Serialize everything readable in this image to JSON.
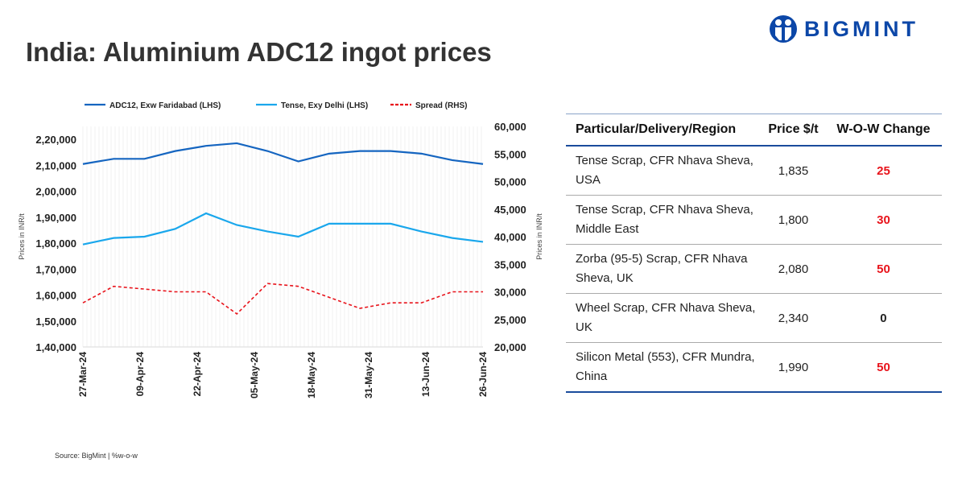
{
  "title": "India: Aluminium ADC12 ingot prices",
  "logo": {
    "text": "BIGMINT",
    "color": "#0c47a8"
  },
  "source": "Source: BigMint | %w-o-w",
  "chart_data": {
    "type": "line",
    "x": [
      "27-Mar-24",
      "03-Apr-24",
      "10-Apr-24",
      "17-Apr-24",
      "24-Apr-24",
      "01-May-24",
      "08-May-24",
      "15-May-24",
      "22-May-24",
      "29-May-24",
      "05-Jun-24",
      "12-Jun-24",
      "19-Jun-24",
      "26-Jun-24"
    ],
    "x_ticks": [
      "27-Mar-24",
      "09-Apr-24",
      "22-Apr-24",
      "05-May-24",
      "18-May-24",
      "31-May-24",
      "13-Jun-24",
      "26-Jun-24"
    ],
    "series": [
      {
        "name": "ADC12, Exw Faridabad (LHS)",
        "axis": "left",
        "color": "#1565c0",
        "dash": false,
        "values": [
          210500,
          212500,
          212500,
          215500,
          217500,
          218500,
          215500,
          211500,
          214500,
          215500,
          215500,
          214500,
          212000,
          210500
        ]
      },
      {
        "name": "Tense, Exy Delhi (LHS)",
        "axis": "left",
        "color": "#1aa7ec",
        "dash": false,
        "values": [
          179500,
          182000,
          182500,
          185500,
          191500,
          187000,
          184500,
          182500,
          187500,
          187500,
          187500,
          184500,
          182000,
          180500
        ]
      },
      {
        "name": "Spread (RHS)",
        "axis": "right",
        "color": "#e8131b",
        "dash": true,
        "values": [
          28000,
          31000,
          30500,
          30000,
          30000,
          26000,
          31500,
          31000,
          29000,
          27000,
          28000,
          28000,
          30000,
          30000
        ]
      }
    ],
    "ylabel": "Prices in INR/t",
    "y2label": "Prices in INR/t",
    "ylim": [
      140000,
      225000
    ],
    "y_ticks": [
      "1,40,000",
      "1,50,000",
      "1,60,000",
      "1,70,000",
      "1,80,000",
      "1,90,000",
      "2,00,000",
      "2,10,000",
      "2,20,000"
    ],
    "y2lim": [
      20000,
      60000
    ],
    "y2_ticks": [
      "20,000",
      "25,000",
      "30,000",
      "35,000",
      "40,000",
      "45,000",
      "50,000",
      "55,000",
      "60,000"
    ],
    "legend": "top",
    "grid": "faint vertical"
  },
  "table": {
    "headers": [
      "Particular/Delivery/Region",
      "Price $/t",
      "W-O-W Change"
    ],
    "rows": [
      {
        "particular": "Tense Scrap, CFR Nhava Sheva, USA",
        "price": "1,835",
        "change": "25",
        "color": "#e8131b"
      },
      {
        "particular": "Tense Scrap, CFR Nhava Sheva, Middle East",
        "price": "1,800",
        "change": "30",
        "color": "#e8131b"
      },
      {
        "particular": "Zorba (95-5) Scrap, CFR Nhava Sheva, UK",
        "price": "2,080",
        "change": "50",
        "color": "#e8131b"
      },
      {
        "particular": "Wheel Scrap, CFR Nhava Sheva, UK",
        "price": "2,340",
        "change": "0",
        "color": "#222222"
      },
      {
        "particular": "Silicon Metal (553), CFR Mundra, China",
        "price": "1,990",
        "change": "50",
        "color": "#e8131b"
      }
    ]
  }
}
